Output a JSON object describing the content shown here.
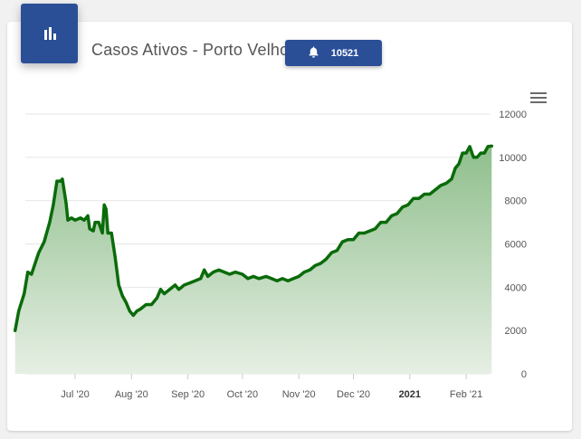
{
  "header": {
    "icon": "bar-chart-icon",
    "title": "Casos Ativos - Porto Velho",
    "badge": {
      "icon": "bell-icon",
      "value": "10521"
    },
    "menu_icon": "hamburger-menu-icon"
  },
  "colors": {
    "primary": "#2a4f97",
    "line": "#0a6b0a",
    "area_top": "#8fbf8c",
    "area_bottom": "#e6efe4"
  },
  "chart_data": {
    "type": "area",
    "title": "Casos Ativos - Porto Velho",
    "xlabel": "",
    "ylabel": "",
    "ylim": [
      0,
      12000
    ],
    "yticks": [
      "0",
      "2000",
      "4000",
      "6000",
      "8000",
      "10000",
      "12000"
    ],
    "xticks": [
      {
        "label": "Jul '20",
        "date": "2020-07-01",
        "bold": false
      },
      {
        "label": "Aug '20",
        "date": "2020-08-01",
        "bold": false
      },
      {
        "label": "Sep '20",
        "date": "2020-09-01",
        "bold": false
      },
      {
        "label": "Oct '20",
        "date": "2020-10-01",
        "bold": false
      },
      {
        "label": "Nov '20",
        "date": "2020-11-01",
        "bold": false
      },
      {
        "label": "Dec '20",
        "date": "2020-12-01",
        "bold": false
      },
      {
        "label": "2021",
        "date": "2021-01-01",
        "bold": true
      },
      {
        "label": "Feb '21",
        "date": "2021-02-01",
        "bold": false
      }
    ],
    "grid": true,
    "legend": "none",
    "series": [
      {
        "points": [
          [
            "2020-05-29",
            2000
          ],
          [
            "2020-05-31",
            2900
          ],
          [
            "2020-06-03",
            3700
          ],
          [
            "2020-06-05",
            4700
          ],
          [
            "2020-06-07",
            4600
          ],
          [
            "2020-06-09",
            5100
          ],
          [
            "2020-06-11",
            5600
          ],
          [
            "2020-06-14",
            6100
          ],
          [
            "2020-06-17",
            7000
          ],
          [
            "2020-06-19",
            7800
          ],
          [
            "2020-06-21",
            8900
          ],
          [
            "2020-06-23",
            8900
          ],
          [
            "2020-06-24",
            9000
          ],
          [
            "2020-06-26",
            7900
          ],
          [
            "2020-06-27",
            7100
          ],
          [
            "2020-06-29",
            7200
          ],
          [
            "2020-07-01",
            7100
          ],
          [
            "2020-07-04",
            7200
          ],
          [
            "2020-07-06",
            7100
          ],
          [
            "2020-07-08",
            7300
          ],
          [
            "2020-07-09",
            6700
          ],
          [
            "2020-07-11",
            6600
          ],
          [
            "2020-07-12",
            7000
          ],
          [
            "2020-07-14",
            7000
          ],
          [
            "2020-07-16",
            6500
          ],
          [
            "2020-07-17",
            7800
          ],
          [
            "2020-07-18",
            7600
          ],
          [
            "2020-07-19",
            6500
          ],
          [
            "2020-07-21",
            6500
          ],
          [
            "2020-07-23",
            5400
          ],
          [
            "2020-07-25",
            4100
          ],
          [
            "2020-07-27",
            3600
          ],
          [
            "2020-07-29",
            3300
          ],
          [
            "2020-07-31",
            2900
          ],
          [
            "2020-08-02",
            2700
          ],
          [
            "2020-08-04",
            2900
          ],
          [
            "2020-08-06",
            3000
          ],
          [
            "2020-08-09",
            3200
          ],
          [
            "2020-08-12",
            3200
          ],
          [
            "2020-08-15",
            3500
          ],
          [
            "2020-08-17",
            3900
          ],
          [
            "2020-08-19",
            3700
          ],
          [
            "2020-08-22",
            3900
          ],
          [
            "2020-08-25",
            4100
          ],
          [
            "2020-08-27",
            3900
          ],
          [
            "2020-08-30",
            4100
          ],
          [
            "2020-09-02",
            4200
          ],
          [
            "2020-09-05",
            4300
          ],
          [
            "2020-09-08",
            4400
          ],
          [
            "2020-09-10",
            4800
          ],
          [
            "2020-09-12",
            4500
          ],
          [
            "2020-09-15",
            4700
          ],
          [
            "2020-09-18",
            4800
          ],
          [
            "2020-09-21",
            4700
          ],
          [
            "2020-09-24",
            4600
          ],
          [
            "2020-09-27",
            4700
          ],
          [
            "2020-10-01",
            4600
          ],
          [
            "2020-10-04",
            4400
          ],
          [
            "2020-10-07",
            4500
          ],
          [
            "2020-10-10",
            4400
          ],
          [
            "2020-10-14",
            4500
          ],
          [
            "2020-10-17",
            4400
          ],
          [
            "2020-10-20",
            4300
          ],
          [
            "2020-10-23",
            4400
          ],
          [
            "2020-10-26",
            4300
          ],
          [
            "2020-10-29",
            4400
          ],
          [
            "2020-11-01",
            4500
          ],
          [
            "2020-11-04",
            4700
          ],
          [
            "2020-11-07",
            4800
          ],
          [
            "2020-11-10",
            5000
          ],
          [
            "2020-11-13",
            5100
          ],
          [
            "2020-11-16",
            5300
          ],
          [
            "2020-11-19",
            5600
          ],
          [
            "2020-11-22",
            5700
          ],
          [
            "2020-11-25",
            6100
          ],
          [
            "2020-11-28",
            6200
          ],
          [
            "2020-12-01",
            6200
          ],
          [
            "2020-12-04",
            6500
          ],
          [
            "2020-12-07",
            6500
          ],
          [
            "2020-12-10",
            6600
          ],
          [
            "2020-12-13",
            6700
          ],
          [
            "2020-12-16",
            7000
          ],
          [
            "2020-12-19",
            7000
          ],
          [
            "2020-12-22",
            7300
          ],
          [
            "2020-12-25",
            7400
          ],
          [
            "2020-12-28",
            7700
          ],
          [
            "2020-12-31",
            7800
          ],
          [
            "2021-01-03",
            8100
          ],
          [
            "2021-01-06",
            8100
          ],
          [
            "2021-01-09",
            8300
          ],
          [
            "2021-01-12",
            8300
          ],
          [
            "2021-01-15",
            8500
          ],
          [
            "2021-01-18",
            8700
          ],
          [
            "2021-01-21",
            8800
          ],
          [
            "2021-01-24",
            9000
          ],
          [
            "2021-01-26",
            9500
          ],
          [
            "2021-01-28",
            9700
          ],
          [
            "2021-01-30",
            10200
          ],
          [
            "2021-02-01",
            10200
          ],
          [
            "2021-02-03",
            10500
          ],
          [
            "2021-02-05",
            10000
          ],
          [
            "2021-02-07",
            10000
          ],
          [
            "2021-02-09",
            10200
          ],
          [
            "2021-02-11",
            10200
          ],
          [
            "2021-02-13",
            10500
          ],
          [
            "2021-02-15",
            10521
          ]
        ]
      }
    ]
  }
}
